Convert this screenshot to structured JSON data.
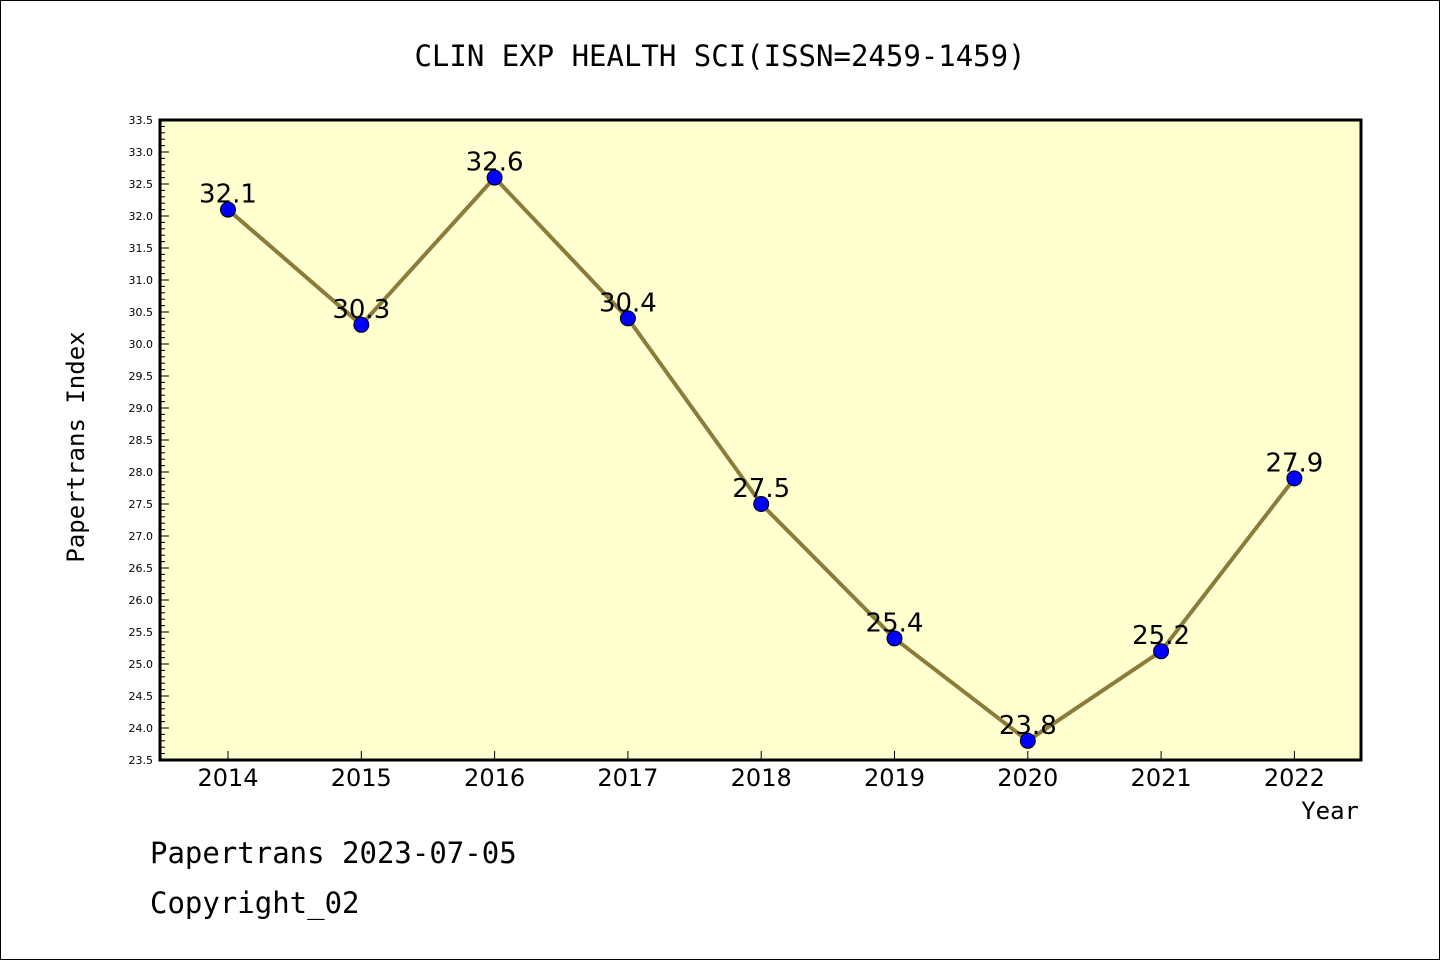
{
  "chart_data": {
    "type": "line",
    "title": "CLIN EXP HEALTH SCI(ISSN=2459-1459)",
    "xlabel": "Year",
    "ylabel": "Papertrans Index",
    "categories": [
      "2014",
      "2015",
      "2016",
      "2017",
      "2018",
      "2019",
      "2020",
      "2021",
      "2022"
    ],
    "values": [
      32.1,
      30.3,
      32.6,
      30.4,
      27.5,
      25.4,
      23.8,
      25.2,
      27.9
    ],
    "data_labels": [
      "32.1",
      "30.3",
      "32.6",
      "30.4",
      "27.5",
      "25.4",
      "23.8",
      "25.2",
      "27.9"
    ],
    "ylim": [
      23.5,
      33.5
    ],
    "yticks": [
      "23.5",
      "24.0",
      "24.5",
      "25.0",
      "25.5",
      "26.0",
      "26.5",
      "27.0",
      "27.5",
      "28.0",
      "28.5",
      "29.0",
      "29.5",
      "30.0",
      "30.5",
      "31.0",
      "31.5",
      "32.0",
      "32.5",
      "33.0",
      "33.5"
    ],
    "grid": false,
    "colors": {
      "plot_background": "#ffffd0",
      "line": "#8c7c3a",
      "marker": "#0000ff",
      "axes": "#000000"
    }
  },
  "footer": {
    "line1": "Papertrans 2023-07-05",
    "line2": "Copyright_02"
  }
}
